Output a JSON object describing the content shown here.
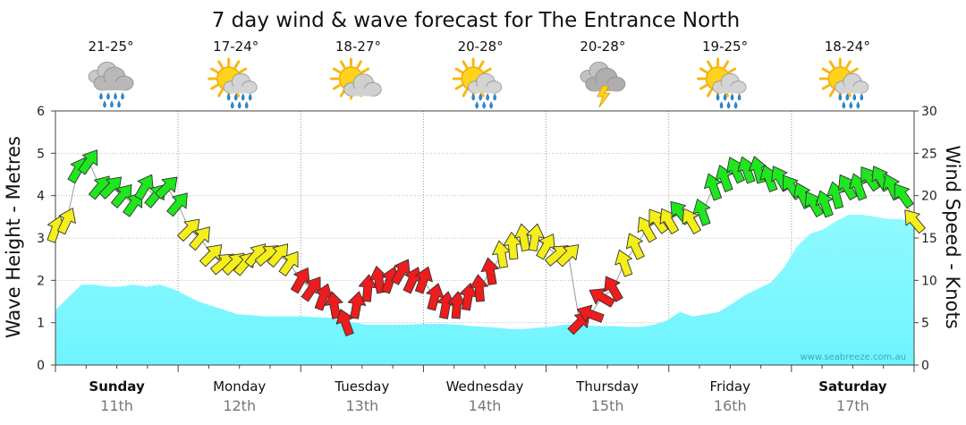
{
  "chart_data": {
    "type": "area",
    "title": "7 day wind & wave forecast for The Entrance North",
    "left_axis": {
      "label": "Wave Height - Metres",
      "range": [
        0,
        6
      ],
      "ticks": [
        "0",
        "1",
        "2",
        "3",
        "4",
        "5",
        "6"
      ]
    },
    "right_axis": {
      "label": "Wind Speed - Knots",
      "range": [
        0,
        30
      ],
      "ticks": [
        "0",
        "5",
        "10",
        "15",
        "20",
        "25",
        "30"
      ]
    },
    "days": [
      {
        "name": "Sunday",
        "date": "11th",
        "temp": "21-25°",
        "weather": "rain-icon",
        "bold": true
      },
      {
        "name": "Monday",
        "date": "12th",
        "temp": "17-24°",
        "weather": "sun-showers-icon",
        "bold": false
      },
      {
        "name": "Tuesday",
        "date": "13th",
        "temp": "18-27°",
        "weather": "partly-cloudy-icon",
        "bold": false
      },
      {
        "name": "Wednesday",
        "date": "14th",
        "temp": "20-28°",
        "weather": "sun-showers-icon",
        "bold": false
      },
      {
        "name": "Thursday",
        "date": "15th",
        "temp": "20-28°",
        "weather": "storm-icon",
        "bold": false
      },
      {
        "name": "Friday",
        "date": "16th",
        "temp": "19-25°",
        "weather": "sun-showers-icon",
        "bold": false
      },
      {
        "name": "Saturday",
        "date": "17th",
        "temp": "18-24°",
        "weather": "sun-showers-icon",
        "bold": true
      }
    ],
    "wave_height_m": [
      1.3,
      1.6,
      1.9,
      1.9,
      1.85,
      1.85,
      1.9,
      1.85,
      1.9,
      1.8,
      1.65,
      1.5,
      1.4,
      1.3,
      1.2,
      1.18,
      1.15,
      1.15,
      1.15,
      1.15,
      1.13,
      1.12,
      1.05,
      1.0,
      0.95,
      0.95,
      0.95,
      0.95,
      0.97,
      0.97,
      0.97,
      0.95,
      0.92,
      0.9,
      0.88,
      0.85,
      0.85,
      0.88,
      0.9,
      0.95,
      0.95,
      0.93,
      0.92,
      0.92,
      0.9,
      0.9,
      0.95,
      1.05,
      1.25,
      1.15,
      1.2,
      1.25,
      1.45,
      1.65,
      1.8,
      1.95,
      2.3,
      2.8,
      3.1,
      3.2,
      3.4,
      3.55,
      3.55,
      3.5,
      3.45,
      3.45,
      3.35
    ],
    "wind_knots": [
      16,
      17,
      23,
      24,
      21,
      21,
      20,
      19,
      21,
      20,
      21,
      19,
      16,
      15,
      13,
      12,
      12,
      12,
      13,
      13,
      13,
      12,
      10,
      9,
      8,
      7,
      5,
      7,
      9,
      10,
      10,
      11,
      10,
      10,
      8,
      7,
      7,
      8,
      9,
      11,
      13,
      14,
      15,
      15,
      14,
      13,
      13,
      5,
      6,
      8,
      9,
      12,
      14,
      16,
      17,
      17,
      18,
      17,
      18,
      21,
      22,
      23,
      23,
      23,
      22,
      22,
      21,
      20,
      19,
      19,
      20,
      21,
      21,
      22,
      22,
      21,
      20,
      17
    ],
    "wind_colors": {
      "strong": "#1fe61f",
      "moderate": "#f4ee1a",
      "light": "#ee1c1c"
    },
    "wave_color": "#7ff8ff",
    "watermark": "www.seabreeze.com.au"
  }
}
